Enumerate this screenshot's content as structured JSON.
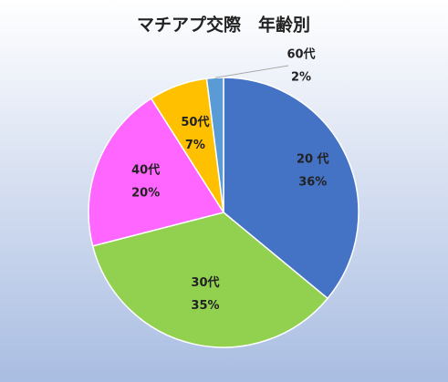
{
  "chart_data": {
    "type": "pie",
    "title": "マチアプ交際　年齢別",
    "categories": [
      "20 代",
      "30代",
      "40代",
      "50代",
      "60代"
    ],
    "values": [
      36,
      35,
      20,
      7,
      2
    ],
    "value_labels": [
      "36%",
      "35%",
      "20%",
      "7%",
      "2%"
    ],
    "colors": [
      "#4472c4",
      "#92d050",
      "#ff66ff",
      "#ffc000",
      "#5b9bd5"
    ]
  }
}
